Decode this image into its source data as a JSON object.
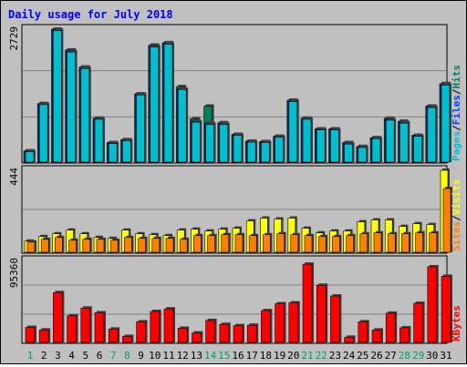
{
  "chart_data": [
    {
      "type": "bar",
      "title": "Daily usage for July 2018",
      "ymax_label": "2729",
      "legend": [
        {
          "label": "Pages",
          "color": "#00c0d0"
        },
        {
          "label": "Files",
          "color": "#0040ff"
        },
        {
          "label": "Hits",
          "color": "#008060"
        }
      ],
      "categories": [
        "1",
        "2",
        "3",
        "4",
        "5",
        "6",
        "7",
        "8",
        "9",
        "10",
        "11",
        "12",
        "13",
        "14",
        "15",
        "16",
        "17",
        "18",
        "19",
        "20",
        "21",
        "22",
        "23",
        "24",
        "25",
        "26",
        "27",
        "28",
        "29",
        "30",
        "31"
      ],
      "series": [
        {
          "name": "Hits",
          "values": [
            230,
            1200,
            2729,
            2300,
            1950,
            900,
            400,
            460,
            1400,
            2400,
            2450,
            1550,
            890,
            1150,
            810,
            570,
            430,
            420,
            530,
            1270,
            900,
            680,
            680,
            400,
            320,
            500,
            900,
            840,
            550,
            1150,
            1610
          ]
        },
        {
          "name": "Files",
          "values": [
            230,
            1200,
            2720,
            2300,
            1950,
            900,
            400,
            460,
            1400,
            2400,
            2450,
            1500,
            840,
            800,
            790,
            570,
            430,
            420,
            530,
            1270,
            900,
            680,
            680,
            400,
            320,
            500,
            880,
            820,
            550,
            1150,
            1610
          ]
        },
        {
          "name": "Pages",
          "values": [
            210,
            1180,
            2700,
            2260,
            1920,
            880,
            380,
            440,
            1380,
            2360,
            2420,
            1490,
            820,
            770,
            770,
            550,
            410,
            400,
            510,
            1240,
            880,
            660,
            660,
            370,
            300,
            480,
            860,
            800,
            530,
            1120,
            1580
          ]
        }
      ]
    },
    {
      "type": "bar",
      "ymax_label": "444",
      "legend": [
        {
          "label": "Sites",
          "color": "#ff8000"
        },
        {
          "label": "Visits",
          "color": "#ffff00"
        }
      ],
      "categories": [
        "1",
        "2",
        "3",
        "4",
        "5",
        "6",
        "7",
        "8",
        "9",
        "10",
        "11",
        "12",
        "13",
        "14",
        "15",
        "16",
        "17",
        "18",
        "19",
        "20",
        "21",
        "22",
        "23",
        "24",
        "25",
        "26",
        "27",
        "28",
        "29",
        "30",
        "31"
      ],
      "series": [
        {
          "name": "Visits",
          "values": [
            60,
            85,
            100,
            120,
            100,
            80,
            75,
            120,
            100,
            95,
            90,
            120,
            125,
            115,
            125,
            130,
            170,
            185,
            180,
            185,
            130,
            105,
            115,
            115,
            165,
            175,
            175,
            140,
            155,
            150,
            444
          ]
        },
        {
          "name": "Sites",
          "values": [
            55,
            70,
            80,
            65,
            70,
            70,
            65,
            80,
            75,
            75,
            75,
            70,
            90,
            90,
            95,
            95,
            90,
            95,
            100,
            95,
            90,
            85,
            85,
            90,
            100,
            105,
            100,
            100,
            105,
            105,
            345
          ]
        }
      ]
    },
    {
      "type": "bar",
      "ymax_label": "95360",
      "legend": [
        {
          "label": "KBytes",
          "color": "#ff0000"
        }
      ],
      "categories": [
        "1",
        "2",
        "3",
        "4",
        "5",
        "6",
        "7",
        "8",
        "9",
        "10",
        "11",
        "12",
        "13",
        "14",
        "15",
        "16",
        "17",
        "18",
        "19",
        "20",
        "21",
        "22",
        "23",
        "24",
        "25",
        "26",
        "27",
        "28",
        "29",
        "30",
        "31"
      ],
      "series": [
        {
          "name": "KBytes",
          "values": [
            17500,
            14500,
            58000,
            31000,
            40000,
            34500,
            15500,
            7000,
            24000,
            36000,
            39000,
            16500,
            11000,
            25500,
            21000,
            19500,
            20000,
            37000,
            45000,
            46000,
            91000,
            66500,
            54000,
            6000,
            24000,
            14500,
            34000,
            17000,
            45500,
            88000,
            77000
          ]
        }
      ]
    }
  ],
  "x_labels": [
    "1",
    "2",
    "3",
    "4",
    "5",
    "6",
    "7",
    "8",
    "9",
    "10",
    "11",
    "12",
    "13",
    "14",
    "15",
    "16",
    "17",
    "18",
    "19",
    "20",
    "21",
    "22",
    "23",
    "24",
    "25",
    "26",
    "27",
    "28",
    "29",
    "30",
    "31"
  ],
  "weekend_days": [
    1,
    7,
    8,
    14,
    15,
    21,
    22,
    28,
    29
  ],
  "colors": {
    "background": "#c0c0c0",
    "plot": "#c0c0c0",
    "title": "#0000ff",
    "hits": "#008060",
    "files": "#0040ff",
    "pages": "#00c0d0",
    "visits": "#ffff00",
    "sites": "#ff8000",
    "kbytes": "#ff0000",
    "weekend_label": "#00a060",
    "weekday_label": "#000000"
  }
}
